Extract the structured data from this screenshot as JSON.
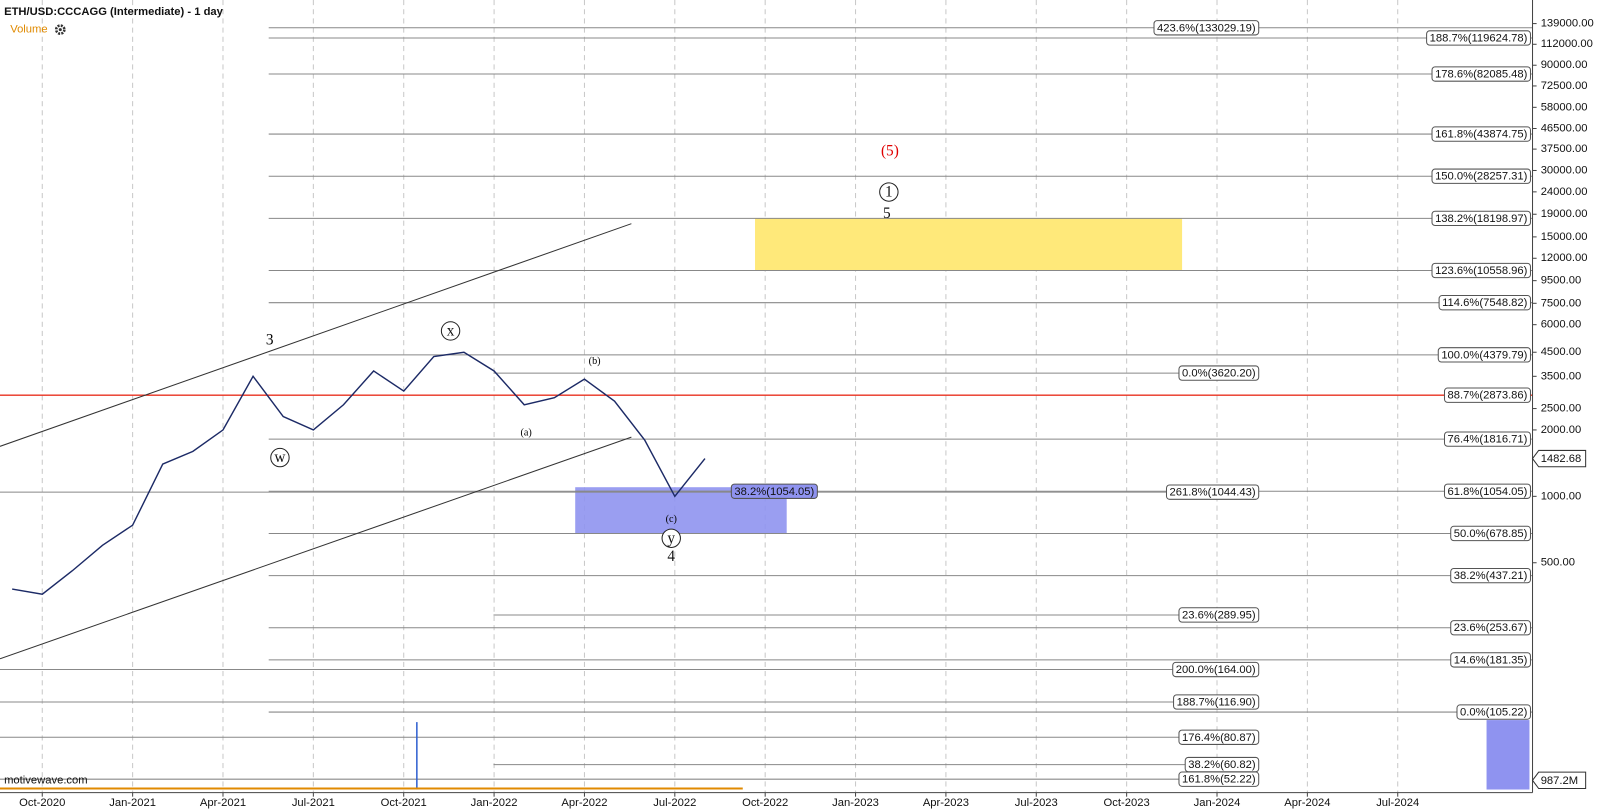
{
  "chart_data": {
    "type": "line",
    "title": "ETH/USD:CCCAGG (Intermediate) - 1 day",
    "volume_label": "Volume",
    "watermark": "motivewave.com",
    "log_scale": true,
    "grid": true,
    "color": "#1c2a66",
    "xlim": [
      "2020-08",
      "2024-11"
    ],
    "ylim": [
      45.4,
      177800
    ],
    "xticks": [
      {
        "value": "2020-10",
        "label": "Oct-2020"
      },
      {
        "value": "2021-01",
        "label": "Jan-2021"
      },
      {
        "value": "2021-04",
        "label": "Apr-2021"
      },
      {
        "value": "2021-07",
        "label": "Jul-2021"
      },
      {
        "value": "2021-10",
        "label": "Oct-2021"
      },
      {
        "value": "2022-01",
        "label": "Jan-2022"
      },
      {
        "value": "2022-04",
        "label": "Apr-2022"
      },
      {
        "value": "2022-07",
        "label": "Jul-2022"
      },
      {
        "value": "2022-10",
        "label": "Oct-2022"
      },
      {
        "value": "2023-01",
        "label": "Jan-2023"
      },
      {
        "value": "2023-04",
        "label": "Apr-2023"
      },
      {
        "value": "2023-07",
        "label": "Jul-2023"
      },
      {
        "value": "2023-10",
        "label": "Oct-2023"
      },
      {
        "value": "2024-01",
        "label": "Jan-2024"
      },
      {
        "value": "2024-04",
        "label": "Apr-2024"
      },
      {
        "value": "2024-07",
        "label": "Jul-2024"
      }
    ],
    "yticks": [
      {
        "value": 139000,
        "label": "139000.00"
      },
      {
        "value": 112000,
        "label": "112000.00"
      },
      {
        "value": 90000,
        "label": "90000.00"
      },
      {
        "value": 72500,
        "label": "72500.00"
      },
      {
        "value": 58000,
        "label": "58000.00"
      },
      {
        "value": 46500,
        "label": "46500.00"
      },
      {
        "value": 37500,
        "label": "37500.00"
      },
      {
        "value": 30000,
        "label": "30000.00"
      },
      {
        "value": 24000,
        "label": "24000.00"
      },
      {
        "value": 19000,
        "label": "19000.00"
      },
      {
        "value": 15000,
        "label": "15000.00"
      },
      {
        "value": 12000,
        "label": "12000.00"
      },
      {
        "value": 9500,
        "label": "9500.00"
      },
      {
        "value": 7500,
        "label": "7500.00"
      },
      {
        "value": 6000,
        "label": "6000.00"
      },
      {
        "value": 4500,
        "label": "4500.00"
      },
      {
        "value": 3500,
        "label": "3500.00"
      },
      {
        "value": 2500,
        "label": "2500.00"
      },
      {
        "value": 2000,
        "label": "2000.00"
      },
      {
        "value": 1000,
        "label": "1000.00"
      },
      {
        "value": 500,
        "label": "500.00"
      }
    ],
    "x": [
      "2020-09",
      "2020-10",
      "2020-11",
      "2020-12",
      "2021-01",
      "2021-02",
      "2021-03",
      "2021-04",
      "2021-05",
      "2021-06",
      "2021-07",
      "2021-08",
      "2021-09",
      "2021-10",
      "2021-11",
      "2021-12",
      "2022-01",
      "2022-02",
      "2022-03",
      "2022-04",
      "2022-05",
      "2022-06",
      "2022-07",
      "2022-08"
    ],
    "values": [
      380,
      360,
      460,
      600,
      740,
      1400,
      1600,
      2000,
      3500,
      2300,
      2000,
      2600,
      3700,
      3000,
      4300,
      4500,
      3700,
      2600,
      2800,
      3400,
      2700,
      1800,
      1000,
      1482.68
    ],
    "last_price": {
      "value": 1482.68,
      "label": "1482.68"
    },
    "last_volume": "987.2M",
    "fib_levels": [
      {
        "label": "423.6%(133029.19)",
        "value": 133029.19
      },
      {
        "label": "188.7%(119624.78)",
        "value": 119624.78
      },
      {
        "label": "178.6%(82085.48)",
        "value": 82085.48
      },
      {
        "label": "161.8%(43874.75)",
        "value": 43874.75
      },
      {
        "label": "150.0%(28257.31)",
        "value": 28257.31
      },
      {
        "label": "138.2%(18198.97)",
        "value": 18198.97
      },
      {
        "label": "123.6%(10558.96)",
        "value": 10558.96
      },
      {
        "label": "114.6%(7548.82)",
        "value": 7548.82
      },
      {
        "label": "100.0%(4379.79)",
        "value": 4379.79
      },
      {
        "label": "0.0%(3620.20)",
        "value": 3620.2
      },
      {
        "label": "88.7%(2873.86)",
        "value": 2873.86
      },
      {
        "label": "76.4%(1816.71)",
        "value": 1816.71
      },
      {
        "label": "261.8%(1044.43)",
        "value": 1044.43
      },
      {
        "label": "61.8%(1054.05)",
        "value": 1054.05
      },
      {
        "label": "38.2%(1054.05)",
        "value": 1054.05
      },
      {
        "label": "50.0%(678.85)",
        "value": 678.85
      },
      {
        "label": "38.2%(437.21)",
        "value": 437.21
      },
      {
        "label": "23.6%(289.95)",
        "value": 289.95
      },
      {
        "label": "23.6%(253.67)",
        "value": 253.67
      },
      {
        "label": "14.6%(181.35)",
        "value": 181.35
      },
      {
        "label": "200.0%(164.00)",
        "value": 164.0
      },
      {
        "label": "188.7%(116.90)",
        "value": 116.9
      },
      {
        "label": "0.0%(105.22)",
        "value": 105.22
      },
      {
        "label": "176.4%(80.87)",
        "value": 80.87
      },
      {
        "label": "38.2%(60.82)",
        "value": 60.82
      },
      {
        "label": "161.8%(52.22)",
        "value": 52.22
      }
    ],
    "waves": [
      "3",
      "(5)",
      "1",
      "5",
      "x",
      "w",
      "(a)",
      "(b)",
      "(c)",
      "y",
      "4"
    ]
  }
}
